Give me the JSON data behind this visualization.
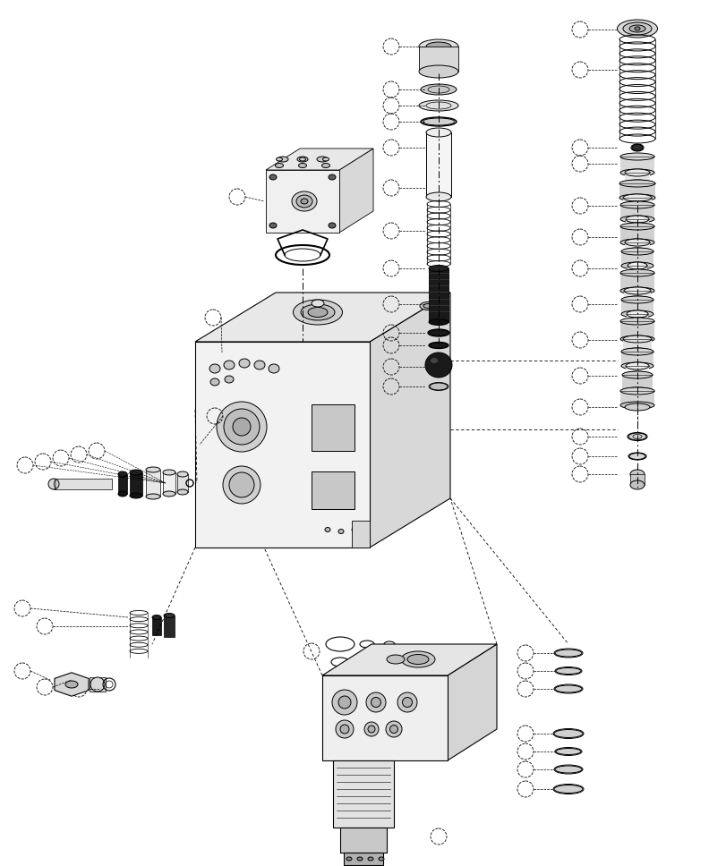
{
  "bg_color": "#ffffff",
  "line_color": "#000000",
  "figsize": [
    7.92,
    9.68
  ],
  "dpi": 100
}
